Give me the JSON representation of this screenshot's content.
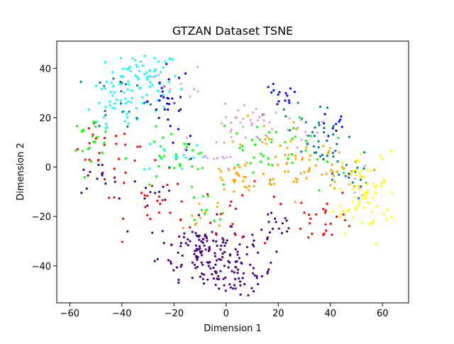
{
  "chart_data": {
    "type": "scatter",
    "title": "GTZAN Dataset TSNE",
    "xlabel": "Dimension 1",
    "ylabel": "Dimension 2",
    "xlim": [
      -65,
      70
    ],
    "ylim": [
      -55,
      51
    ],
    "xticks": [
      -60,
      -40,
      -20,
      0,
      20,
      40,
      60
    ],
    "yticks": [
      -40,
      -20,
      0,
      20,
      40
    ],
    "xtick_labels": [
      "−60",
      "−40",
      "−20",
      "0",
      "20",
      "40",
      "60"
    ],
    "ytick_labels": [
      "−40",
      "−20",
      "0",
      "20",
      "40"
    ],
    "grid": false,
    "legend": "none",
    "series": [
      {
        "color": "#00ffff",
        "clusters": [
          [
            -32,
            35,
            7,
            6,
            80
          ],
          [
            -44,
            22,
            5,
            5,
            25
          ],
          [
            -20,
            5,
            6,
            4,
            15
          ]
        ]
      },
      {
        "color": "#4b0082",
        "clusters": [
          [
            -10,
            -33,
            8,
            6,
            110
          ],
          [
            3,
            -43,
            8,
            5,
            80
          ],
          [
            -50,
            -5,
            4,
            3,
            15
          ],
          [
            18,
            -25,
            5,
            4,
            20
          ],
          [
            -28,
            -10,
            5,
            5,
            10
          ]
        ]
      },
      {
        "color": "#0000ff",
        "clusters": [
          [
            -22,
            27,
            4,
            7,
            30
          ],
          [
            20,
            28,
            4,
            3,
            15
          ],
          [
            42,
            17,
            3,
            3,
            10
          ],
          [
            -18,
            8,
            3,
            3,
            5
          ]
        ]
      },
      {
        "color": "#ff0000",
        "clusters": [
          [
            -48,
            5,
            6,
            6,
            20
          ],
          [
            -24,
            -15,
            7,
            6,
            20
          ],
          [
            38,
            -20,
            6,
            5,
            25
          ],
          [
            5,
            -20,
            10,
            6,
            15
          ],
          [
            -35,
            0,
            6,
            6,
            10
          ]
        ]
      },
      {
        "color": "#00ff00",
        "clusters": [
          [
            -52,
            12,
            4,
            4,
            20
          ],
          [
            -20,
            3,
            8,
            6,
            30
          ],
          [
            12,
            8,
            8,
            6,
            25
          ],
          [
            -10,
            -20,
            6,
            5,
            10
          ],
          [
            30,
            5,
            8,
            8,
            15
          ]
        ]
      },
      {
        "color": "#ffa500",
        "clusters": [
          [
            5,
            -5,
            7,
            5,
            30
          ],
          [
            28,
            3,
            8,
            6,
            35
          ],
          [
            40,
            -3,
            6,
            5,
            25
          ],
          [
            -8,
            -18,
            5,
            4,
            10
          ],
          [
            15,
            15,
            5,
            4,
            10
          ]
        ]
      },
      {
        "color": "#008080",
        "clusters": [
          [
            -40,
            28,
            6,
            6,
            20
          ],
          [
            35,
            10,
            6,
            6,
            25
          ],
          [
            45,
            -3,
            5,
            5,
            20
          ],
          [
            25,
            20,
            6,
            4,
            10
          ]
        ]
      },
      {
        "color": "#dda0dd",
        "clusters": [
          [
            8,
            18,
            5,
            4,
            30
          ],
          [
            -18,
            35,
            5,
            4,
            10
          ],
          [
            -5,
            5,
            5,
            5,
            15
          ],
          [
            50,
            -8,
            4,
            4,
            10
          ],
          [
            30,
            15,
            5,
            5,
            10
          ]
        ]
      },
      {
        "color": "#ffff00",
        "clusters": [
          [
            55,
            -10,
            5,
            8,
            60
          ],
          [
            48,
            -18,
            4,
            4,
            15
          ]
        ]
      }
    ]
  }
}
